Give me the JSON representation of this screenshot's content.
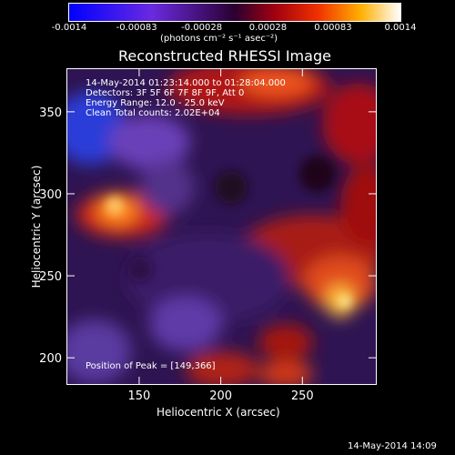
{
  "colorbar": {
    "tick_labels": [
      "-0.0014",
      "-0.00083",
      "-0.00028",
      "0.00028",
      "0.00083",
      "0.0014"
    ],
    "units_label": "(photons cm⁻² s⁻¹ asec⁻²)",
    "min": -0.0014,
    "max": 0.0014
  },
  "chart_data": {
    "type": "heatmap",
    "title": "Reconstructed RHESSI Image",
    "xlabel": "Heliocentric X (arcsec)",
    "ylabel": "Heliocentric Y (arcsec)",
    "xlim": [
      106,
      295
    ],
    "ylim": [
      184,
      376
    ],
    "xticks": [
      150,
      200,
      250
    ],
    "yticks": [
      200,
      250,
      300,
      350
    ],
    "annotations": [
      "14-May-2014 01:23:14.000 to 01:28:04.000",
      "Detectors: 3F 5F 6F 7F 8F 9F, Att 0",
      "Energy Range: 12.0 - 25.0 keV",
      "Clean    Total counts: 2.02E+04"
    ],
    "peak_label": "Position of Peak = [149,366]",
    "peak": [
      149,
      366
    ]
  },
  "footer": {
    "timestamp": "14-May-2014 14:09"
  },
  "colors": {
    "background": "#000000",
    "foreground": "#ffffff"
  }
}
